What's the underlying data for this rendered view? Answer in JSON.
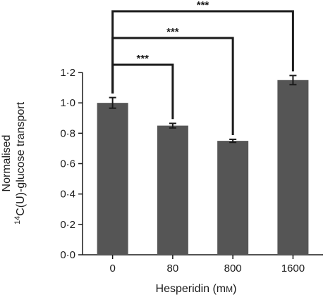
{
  "chart_data": {
    "type": "bar",
    "categories": [
      "0",
      "80",
      "800",
      "1600"
    ],
    "values": [
      1.0,
      0.85,
      0.75,
      1.15
    ],
    "errors": [
      0.035,
      0.015,
      0.01,
      0.03
    ],
    "xlabel": "Hesperidin (mM)",
    "ylabel_line1": "Normalised",
    "ylabel_line2_pre": "",
    "ylabel_sup": "14",
    "ylabel_line2_post": "C(U)-glucose transport",
    "ylim": [
      0,
      1.2
    ],
    "yticks": [
      "0·0",
      "0·2",
      "0·4",
      "0·6",
      "0·8",
      "1·0",
      "1·2"
    ],
    "grid": false,
    "legend": "none",
    "bar_color": "#555555",
    "significance": [
      {
        "from": "0",
        "to": "80",
        "label": "***"
      },
      {
        "from": "0",
        "to": "800",
        "label": "***"
      },
      {
        "from": "0",
        "to": "1600",
        "label": "***"
      }
    ]
  }
}
